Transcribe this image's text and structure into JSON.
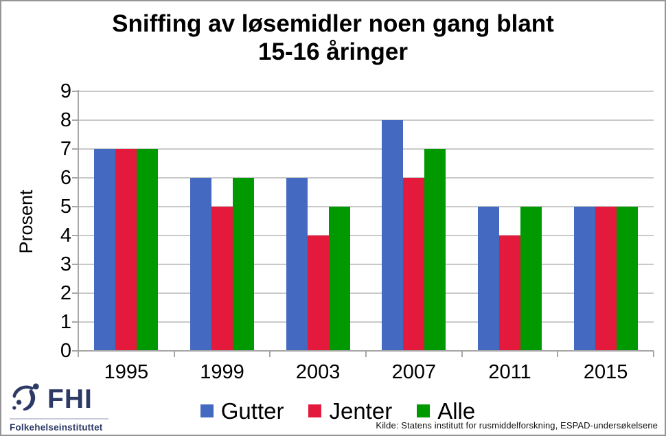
{
  "title": {
    "lines": [
      "Sniffing av løsemidler noen gang blant",
      "15-16 åringer"
    ]
  },
  "chart_data": {
    "type": "bar",
    "title": "Sniffing av løsemidler noen gang blant 15-16 åringer",
    "xlabel": "",
    "ylabel": "Prosent",
    "categories": [
      "1995",
      "1999",
      "2003",
      "2007",
      "2011",
      "2015"
    ],
    "series": [
      {
        "name": "Gutter",
        "color": "#4369C0",
        "values": [
          7,
          6,
          6,
          8,
          5,
          5
        ]
      },
      {
        "name": "Jenter",
        "color": "#E41A3C",
        "values": [
          7,
          5,
          4,
          6,
          4,
          5
        ]
      },
      {
        "name": "Alle",
        "color": "#009A00",
        "values": [
          7,
          6,
          5,
          7,
          5,
          5
        ]
      }
    ],
    "ylim": [
      0,
      9
    ],
    "ytick_step": 1,
    "grid": true,
    "legend_position": "bottom"
  },
  "source": {
    "text": "Kilde: Statens institutt for rusmiddelforskning, ESPAD-undersøkelsene"
  },
  "logo": {
    "abbr": "FHI",
    "name": "Folkehelseinstituttet"
  },
  "colors": {
    "axis": "#A6A6A6",
    "grid": "#C9C9C9",
    "title_text": "#000000",
    "logo_navy": "#2D3A66",
    "frame": "#959595"
  }
}
